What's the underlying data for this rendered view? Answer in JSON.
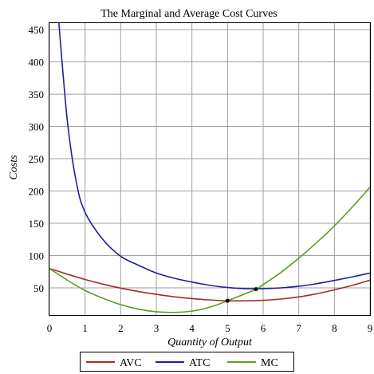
{
  "chart_data": {
    "type": "line",
    "title": "The Marginal and Average Cost Curves",
    "xlabel": "Quantity of Output",
    "ylabel": "Costs",
    "xlim": [
      0,
      9
    ],
    "ylim": [
      8,
      460
    ],
    "xticks": [
      0,
      1,
      2,
      3,
      4,
      5,
      6,
      7,
      8,
      9
    ],
    "yticks": [
      50,
      100,
      150,
      200,
      250,
      300,
      350,
      400,
      450
    ],
    "grid": true,
    "legend_position": "bottom",
    "series": [
      {
        "name": "AVC",
        "color": "#a52a2a",
        "x": [
          0,
          0.5,
          1,
          1.5,
          2,
          2.5,
          3,
          3.5,
          4,
          4.5,
          5,
          5.5,
          6,
          6.5,
          7,
          7.5,
          8,
          8.5,
          9
        ],
        "y": [
          80,
          71.2,
          63,
          55.8,
          49.6,
          44.4,
          40,
          36.2,
          33.4,
          31.3,
          30,
          30,
          30.8,
          32.7,
          36,
          40.8,
          47,
          53.8,
          62
        ]
      },
      {
        "name": "ATC",
        "color": "#1f1fa0",
        "x": [
          0.25,
          0.5,
          0.75,
          1,
          1.5,
          2,
          2.5,
          3,
          3.5,
          4,
          4.5,
          5,
          5.5,
          6,
          6.5,
          7,
          7.5,
          8,
          8.5,
          9
        ],
        "y": [
          470,
          310,
          215,
          167,
          125,
          99,
          85,
          73,
          65,
          59,
          54,
          50.5,
          48.8,
          48.8,
          50,
          52.5,
          56.5,
          61.5,
          67,
          73
        ]
      },
      {
        "name": "MC",
        "color": "#5a9e1f",
        "x": [
          0,
          0.5,
          1,
          1.5,
          2,
          2.5,
          3,
          3.5,
          4,
          4.5,
          5,
          5.5,
          5.8,
          6,
          6.5,
          7,
          7.5,
          8,
          8.5,
          9
        ],
        "y": [
          80,
          62,
          46,
          34,
          24,
          17,
          13,
          12,
          14,
          20,
          30,
          41,
          48,
          55,
          74,
          96,
          120,
          146,
          175,
          206
        ]
      }
    ],
    "points": [
      {
        "x": 5,
        "y": 30
      },
      {
        "x": 5.8,
        "y": 48
      }
    ]
  }
}
